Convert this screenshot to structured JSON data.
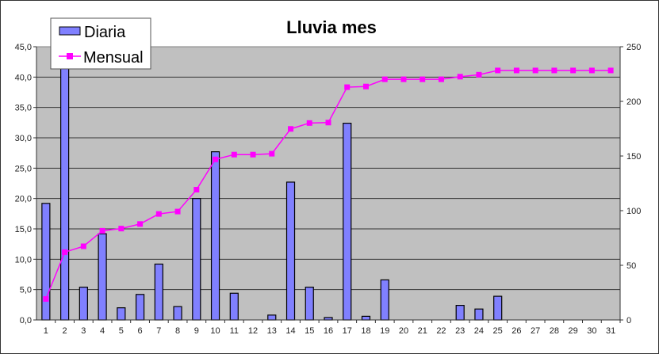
{
  "chart_data": {
    "type": "bar+line",
    "title": "Lluvia mes",
    "categories": [
      "1",
      "2",
      "3",
      "4",
      "5",
      "6",
      "7",
      "8",
      "9",
      "10",
      "11",
      "12",
      "13",
      "14",
      "15",
      "16",
      "17",
      "18",
      "19",
      "20",
      "21",
      "22",
      "23",
      "24",
      "25",
      "26",
      "27",
      "28",
      "29",
      "30",
      "31"
    ],
    "series": [
      {
        "name": "Diaria",
        "type": "bar",
        "axis": "left",
        "color": "#8080FF",
        "values": [
          19.2,
          42.8,
          5.4,
          14.2,
          2.0,
          4.2,
          9.2,
          2.2,
          20.0,
          27.7,
          4.4,
          0,
          0.8,
          22.7,
          5.4,
          0.4,
          32.4,
          0.6,
          6.6,
          0,
          0,
          0,
          2.4,
          1.8,
          3.9,
          0,
          0,
          0,
          0,
          0,
          0
        ]
      },
      {
        "name": "Mensual",
        "type": "line",
        "axis": "right",
        "color": "#FF00FF",
        "values": [
          19.2,
          62.0,
          67.4,
          81.6,
          83.6,
          87.8,
          97.0,
          99.2,
          119.2,
          146.9,
          151.3,
          151.3,
          152.1,
          174.8,
          180.2,
          180.6,
          213.0,
          213.6,
          220.2,
          220.2,
          220.2,
          220.2,
          222.6,
          224.4,
          228.3,
          228.3,
          228.3,
          228.3,
          228.3,
          228.3,
          228.3
        ]
      }
    ],
    "left_axis": {
      "range": [
        0,
        45
      ],
      "ticks": [
        "0,0",
        "5,0",
        "10,0",
        "15,0",
        "20,0",
        "25,0",
        "30,0",
        "35,0",
        "40,0",
        "45,0"
      ]
    },
    "right_axis": {
      "range": [
        0,
        250
      ],
      "ticks": [
        "0",
        "50",
        "100",
        "150",
        "200",
        "250"
      ]
    },
    "grid": true,
    "plot_background": "#C0C0C0",
    "legend": "top-left"
  }
}
